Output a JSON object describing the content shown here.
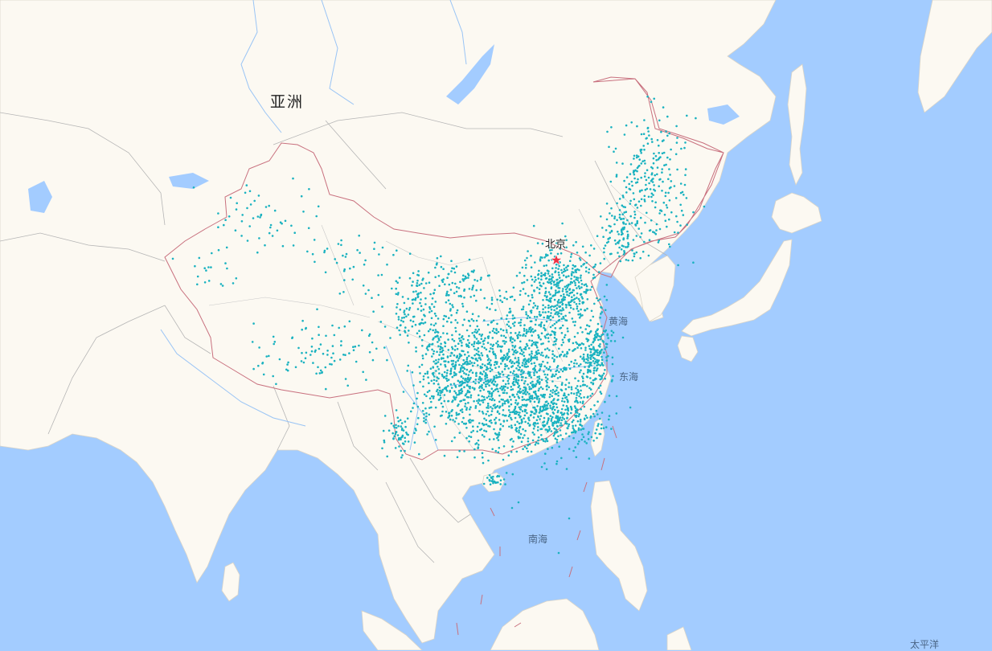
{
  "map": {
    "colors": {
      "water": "#a3ccff",
      "land": "#fcf9f2",
      "border": "#b5b5b5",
      "china_border": "#c8707e",
      "dot": "#1ab2c0",
      "capital_star": "#ee3344",
      "river": "#99c4f5"
    },
    "labels": {
      "continent": "亚洲",
      "capital": "北京",
      "yellow_sea": "黄海",
      "east_sea": "东海",
      "south_sea": "南海",
      "pacific": "太平洋"
    },
    "icons": {
      "capital": "star-icon",
      "point": "dot-marker"
    },
    "point_density": "dense in eastern China, sparse in the west"
  }
}
